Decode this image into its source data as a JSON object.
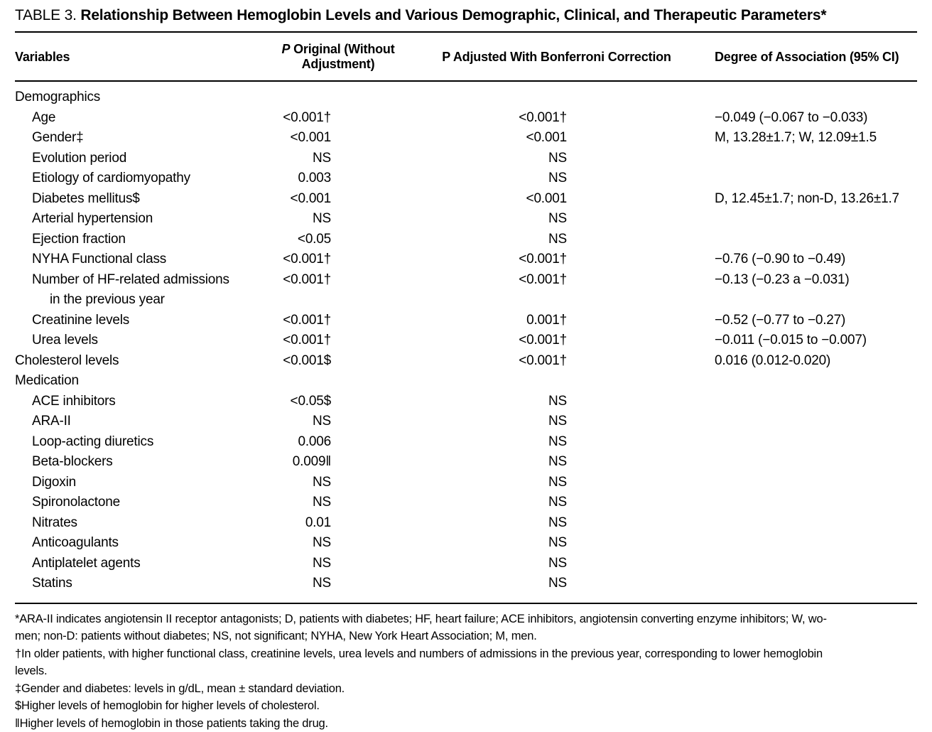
{
  "table": {
    "label": "TABLE 3.",
    "title": "Relationship Between Hemoglobin Levels and Various Demographic, Clinical, and Therapeutic Parameters",
    "title_marker": "*",
    "columns": {
      "variables": "Variables",
      "p_original_prefix": "P",
      "p_original_rest": " Original (Without Adjustment)",
      "p_adjusted": "P Adjusted With Bonferroni Correction",
      "association": "Degree of Association (95% CI)"
    },
    "rows": [
      {
        "label": "Demographics",
        "indent": 0,
        "p_original": "",
        "p_adjusted": "",
        "association": ""
      },
      {
        "label": "Age",
        "indent": 1,
        "p_original": "<0.001†",
        "p_adjusted": "<0.001†",
        "association": "−0.049 (−0.067 to −0.033)"
      },
      {
        "label": "Gender‡",
        "indent": 1,
        "p_original": "<0.001",
        "p_adjusted": "<0.001",
        "association": "M, 13.28±1.7; W, 12.09±1.5"
      },
      {
        "label": "Evolution period",
        "indent": 1,
        "p_original": "NS",
        "p_adjusted": "NS",
        "association": ""
      },
      {
        "label": "Etiology of cardiomyopathy",
        "indent": 1,
        "p_original": "0.003",
        "p_adjusted": "NS",
        "association": ""
      },
      {
        "label": "Diabetes mellitus$",
        "indent": 1,
        "p_original": "<0.001",
        "p_adjusted": "<0.001",
        "association": "D, 12.45±1.7; non-D, 13.26±1.7"
      },
      {
        "label": "Arterial hypertension",
        "indent": 1,
        "p_original": "NS",
        "p_adjusted": "NS",
        "association": ""
      },
      {
        "label": "Ejection fraction",
        "indent": 1,
        "p_original": "<0.05",
        "p_adjusted": "NS",
        "association": ""
      },
      {
        "label": "NYHA Functional class",
        "indent": 1,
        "p_original": "<0.001†",
        "p_adjusted": "<0.001†",
        "association": "−0.76 (−0.90 to −0.49)"
      },
      {
        "label": "Number of HF-related admissions",
        "label2": "in the previous year",
        "indent": 1,
        "p_original": "<0.001†",
        "p_adjusted": "<0.001†",
        "association": "−0.13 (−0.23 a −0.031)"
      },
      {
        "label": "Creatinine levels",
        "indent": 1,
        "p_original": "<0.001†",
        "p_adjusted": "0.001†",
        "association": "−0.52 (−0.77 to −0.27)"
      },
      {
        "label": "Urea levels",
        "indent": 1,
        "p_original": "<0.001†",
        "p_adjusted": "<0.001†",
        "association": "−0.011 (−0.015 to −0.007)"
      },
      {
        "label": "Cholesterol levels",
        "indent": 0,
        "p_original": "<0.001$",
        "p_adjusted": "<0.001†",
        "association": "0.016 (0.012-0.020)"
      },
      {
        "label": "Medication",
        "indent": 0,
        "p_original": "",
        "p_adjusted": "",
        "association": ""
      },
      {
        "label": "ACE inhibitors",
        "indent": 1,
        "p_original": "<0.05$",
        "p_adjusted": "NS",
        "association": ""
      },
      {
        "label": "ARA-II",
        "indent": 1,
        "p_original": "NS",
        "p_adjusted": "NS",
        "association": ""
      },
      {
        "label": "Loop-acting diuretics",
        "indent": 1,
        "p_original": "0.006",
        "p_adjusted": "NS",
        "association": ""
      },
      {
        "label": "Beta-blockers",
        "indent": 1,
        "p_original": "0.009‖",
        "p_adjusted": "NS",
        "association": ""
      },
      {
        "label": "Digoxin",
        "indent": 1,
        "p_original": "NS",
        "p_adjusted": "NS",
        "association": ""
      },
      {
        "label": "Spironolactone",
        "indent": 1,
        "p_original": "NS",
        "p_adjusted": "NS",
        "association": ""
      },
      {
        "label": "Nitrates",
        "indent": 1,
        "p_original": "0.01",
        "p_adjusted": "NS",
        "association": ""
      },
      {
        "label": "Anticoagulants",
        "indent": 1,
        "p_original": "NS",
        "p_adjusted": "NS",
        "association": ""
      },
      {
        "label": "Antiplatelet agents",
        "indent": 1,
        "p_original": "NS",
        "p_adjusted": "NS",
        "association": ""
      },
      {
        "label": "Statins",
        "indent": 1,
        "p_original": "NS",
        "p_adjusted": "NS",
        "association": ""
      }
    ],
    "footnote_lines": [
      "*ARA-II indicates angiotensin II receptor antagonists; D, patients with diabetes; HF, heart failure; ACE inhibitors, angiotensin converting enzyme inhibitors; W, wo-",
      "men; non-D: patients without diabetes; NS, not significant; NYHA, New York Heart Association; M, men.",
      "†In older patients, with higher functional class, creatinine levels, urea levels and numbers of admissions in the previous year, corresponding to lower hemoglobin",
      "levels.",
      "‡Gender and diabetes: levels in g/dL, mean ± standard deviation.",
      "$Higher levels of hemoglobin for higher levels of cholesterol.",
      "‖Higher levels of hemoglobin in those patients taking the drug."
    ]
  }
}
